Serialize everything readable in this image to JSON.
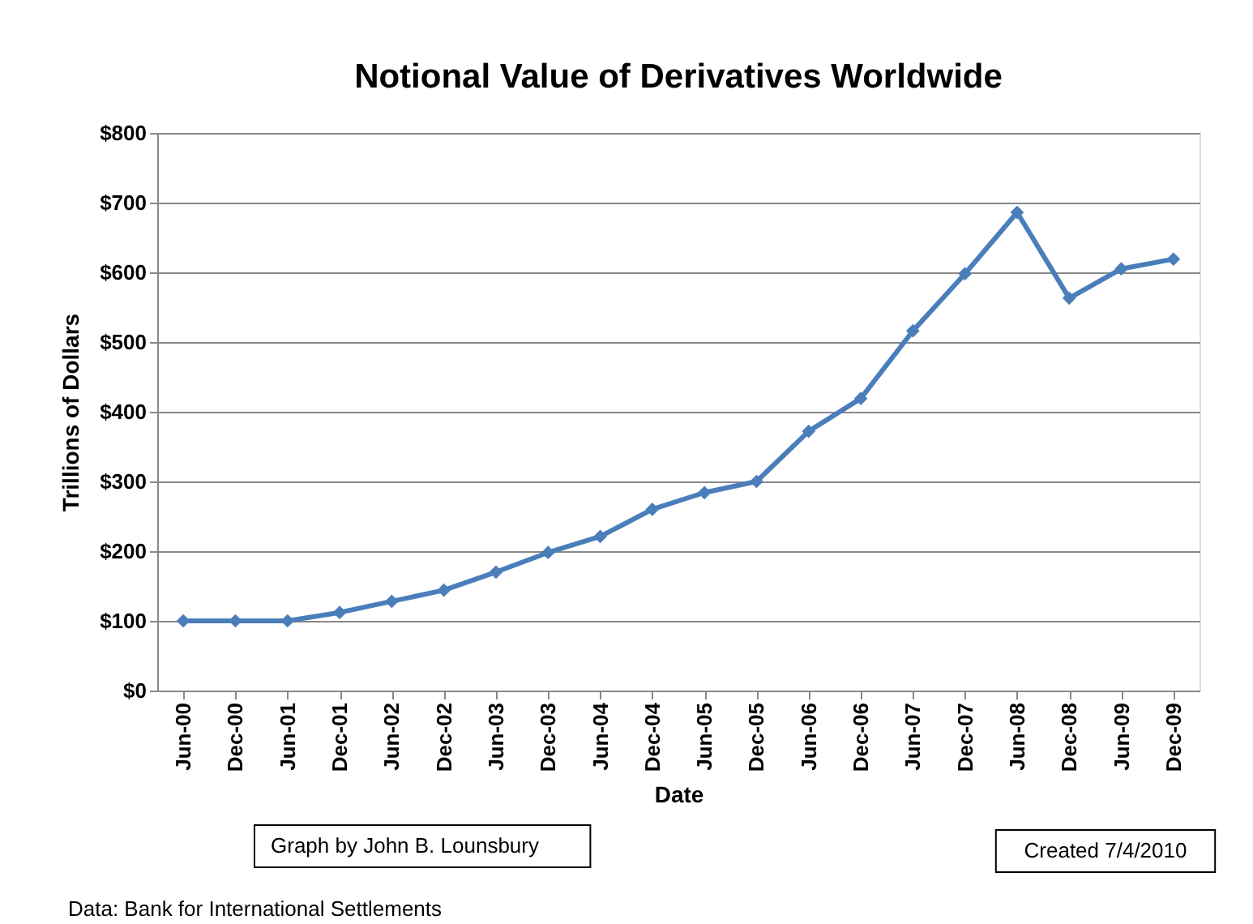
{
  "chart_data": {
    "type": "line",
    "title": "Notional Value of Derivatives Worldwide",
    "xlabel": "Date",
    "ylabel": "Trillions of Dollars",
    "categories": [
      "Jun-00",
      "Dec-00",
      "Jun-01",
      "Dec-01",
      "Jun-02",
      "Dec-02",
      "Jun-03",
      "Dec-03",
      "Jun-04",
      "Dec-04",
      "Jun-05",
      "Dec-05",
      "Jun-06",
      "Dec-06",
      "Jun-07",
      "Dec-07",
      "Jun-08",
      "Dec-08",
      "Jun-09",
      "Dec-09"
    ],
    "series": [
      {
        "color": "#4a7ebb",
        "values": [
          100,
          100,
          100,
          112,
          128,
          144,
          170,
          198,
          221,
          260,
          284,
          300,
          372,
          419,
          516,
          598,
          686,
          563,
          605,
          619
        ]
      }
    ],
    "ylim": [
      0,
      800
    ],
    "yticks": [
      {
        "value": 0,
        "label": "$0"
      },
      {
        "value": 100,
        "label": "$100"
      },
      {
        "value": 200,
        "label": "$200"
      },
      {
        "value": 300,
        "label": "$300"
      },
      {
        "value": 400,
        "label": "$400"
      },
      {
        "value": 500,
        "label": "$500"
      },
      {
        "value": 600,
        "label": "$600"
      },
      {
        "value": 700,
        "label": "$700"
      },
      {
        "value": 800,
        "label": "$800"
      }
    ],
    "grid": "y",
    "marker": "diamond",
    "line_style": "solid",
    "annotations": [
      "Graph by John B. Lounsbury",
      "Created 7/4/2010",
      "Data:  Bank for International Settlements"
    ]
  }
}
